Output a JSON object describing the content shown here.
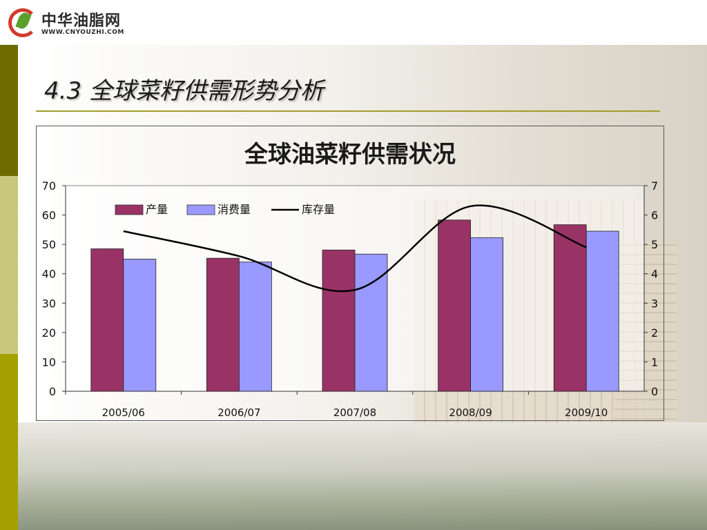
{
  "logo": {
    "name": "中华油脂网",
    "url": "WWW.CNYOUZHI.COM"
  },
  "slide": {
    "title": "4.3 全球菜籽供需形势分析"
  },
  "colors": {
    "production": "#993366",
    "consumption": "#9999ff",
    "stock": "#000000",
    "accent": "#a39b2a"
  },
  "chart_data": {
    "type": "bar",
    "title": "全球油菜籽供需状况",
    "categories": [
      "2005/06",
      "2006/07",
      "2007/08",
      "2008/09",
      "2009/10"
    ],
    "series": [
      {
        "name": "产量",
        "type": "bar",
        "axis": "left",
        "values": [
          48.5,
          45.3,
          48.1,
          58.3,
          56.7
        ]
      },
      {
        "name": "消费量",
        "type": "bar",
        "axis": "left",
        "values": [
          45.0,
          44.0,
          46.7,
          52.3,
          54.5
        ]
      },
      {
        "name": "库存量",
        "type": "line",
        "axis": "right",
        "values": [
          5.45,
          4.6,
          3.45,
          6.3,
          4.9
        ]
      }
    ],
    "ylim": [
      0,
      70
    ],
    "yticks": [
      "0",
      "10",
      "20",
      "30",
      "40",
      "50",
      "60",
      "70"
    ],
    "y2lim": [
      0,
      7
    ],
    "y2ticks": [
      "0",
      "1",
      "2",
      "3",
      "4",
      "5",
      "6",
      "7"
    ],
    "legend": "top-left",
    "grid": false
  }
}
